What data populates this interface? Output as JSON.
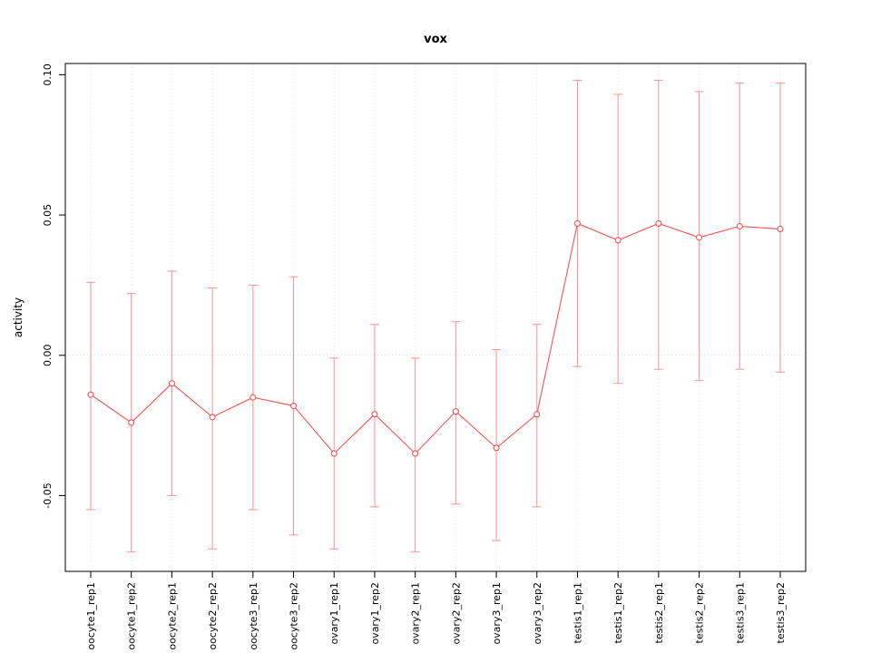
{
  "chart_data": {
    "type": "line",
    "title": "vox",
    "xlabel": "",
    "ylabel": "activity",
    "categories": [
      "oocyte1_rep1",
      "oocyte1_rep2",
      "oocyte2_rep1",
      "oocyte2_rep2",
      "oocyte3_rep1",
      "oocyte3_rep2",
      "ovary1_rep1",
      "ovary1_rep2",
      "ovary2_rep1",
      "ovary2_rep2",
      "ovary3_rep1",
      "ovary3_rep2",
      "testis1_rep1",
      "testis1_rep2",
      "testis2_rep1",
      "testis2_rep2",
      "testis3_rep1",
      "testis3_rep2"
    ],
    "values": [
      -0.014,
      -0.024,
      -0.01,
      -0.022,
      -0.015,
      -0.018,
      -0.035,
      -0.021,
      -0.035,
      -0.02,
      -0.033,
      -0.021,
      0.047,
      0.041,
      0.047,
      0.042,
      0.046,
      0.045
    ],
    "error_upper": [
      0.026,
      0.022,
      0.03,
      0.024,
      0.025,
      0.028,
      -0.001,
      0.011,
      -0.001,
      0.012,
      0.002,
      0.011,
      0.098,
      0.093,
      0.098,
      0.094,
      0.097,
      0.097
    ],
    "error_lower": [
      -0.055,
      -0.07,
      -0.05,
      -0.069,
      -0.055,
      -0.064,
      -0.069,
      -0.054,
      -0.07,
      -0.053,
      -0.066,
      -0.054,
      -0.004,
      -0.01,
      -0.005,
      -0.009,
      -0.005,
      -0.006
    ],
    "yticks": [
      -0.05,
      0.0,
      0.05,
      0.1
    ],
    "ytick_labels": [
      "-0.05",
      "0.00",
      "0.05",
      "0.10"
    ],
    "ylim": [
      -0.077,
      0.104
    ],
    "grid": true,
    "zero_line": true,
    "legend": "none",
    "colors": {
      "series": "#ff4040",
      "point_fill": "#ffffff",
      "error_bar": "#ff9090",
      "gridline": "#e2e2e2",
      "zero_line": "#d9d9d9",
      "axis": "#000000",
      "background": "#ffffff"
    }
  }
}
